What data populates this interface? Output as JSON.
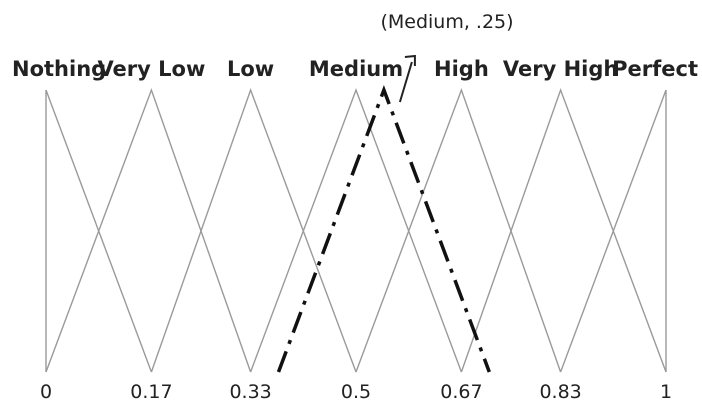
{
  "diagram": {
    "terms": [
      {
        "label": "Nothing",
        "peak": 0
      },
      {
        "label": "Very Low",
        "peak": 0.17
      },
      {
        "label": "Low",
        "peak": 0.33
      },
      {
        "label": "Medium",
        "peak": 0.5
      },
      {
        "label": "High",
        "peak": 0.67
      },
      {
        "label": "Very High",
        "peak": 0.83
      },
      {
        "label": "Perfect",
        "peak": 1
      }
    ],
    "ticks": [
      "0",
      "0.17",
      "0.33",
      "0.5",
      "0.67",
      "0.83",
      "1"
    ],
    "highlight": {
      "term": "Medium",
      "shift": 0.25,
      "start": 0.375,
      "peak": 0.545,
      "end": 0.715
    },
    "annotation": "(Medium, .25)",
    "colors": {
      "membership_lines": "#9a9a9a",
      "highlight_line": "#111111",
      "text": "#222222"
    }
  }
}
